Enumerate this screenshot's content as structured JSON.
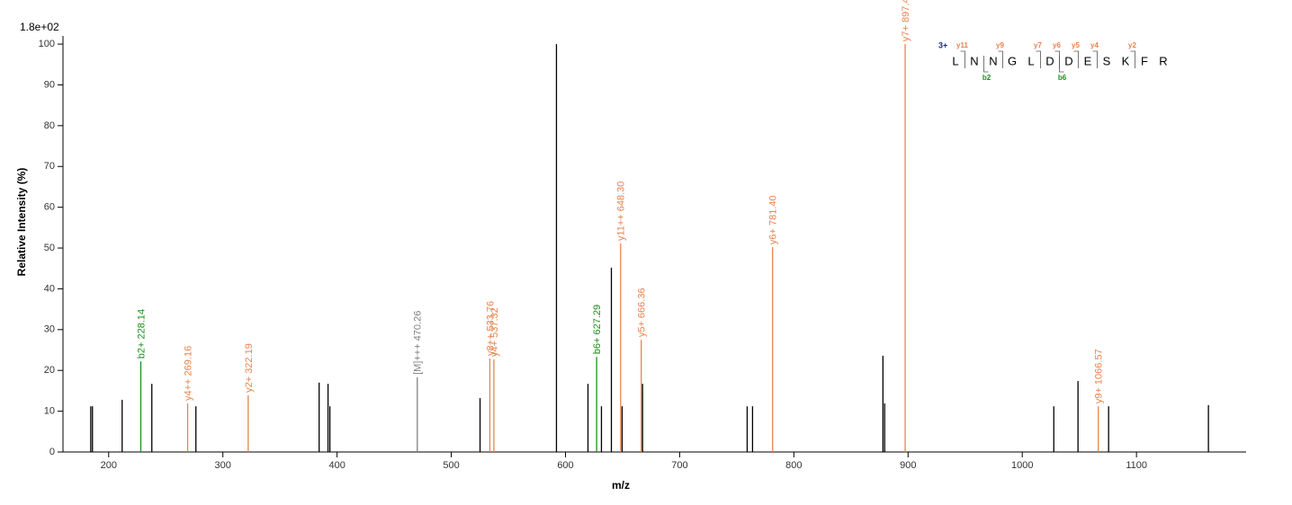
{
  "chart_data": {
    "type": "spectrum",
    "scale_label": "1.8e+02",
    "x_label": "m/z",
    "y_label": "Relative  Intensity (%)",
    "xlim": [
      160,
      1196
    ],
    "ylim": [
      0,
      102
    ],
    "xticks": [
      200,
      300,
      400,
      500,
      600,
      700,
      800,
      900,
      1000,
      1100
    ],
    "yticks": [
      0,
      10,
      20,
      30,
      40,
      50,
      60,
      70,
      80,
      90,
      100
    ],
    "x": [
      184.3,
      185.8,
      211.8,
      228.14,
      237.8,
      269.16,
      276.4,
      322.19,
      384.3,
      392.1,
      393.7,
      470.26,
      525.2,
      533.76,
      537.32,
      592.1,
      619.7,
      627.29,
      631.5,
      640.2,
      648.3,
      649.6,
      666.36,
      667.5,
      759.1,
      763.8,
      781.4,
      878.0,
      879.5,
      897.45,
      1027.6,
      1048.8,
      1066.57,
      1075.6,
      1163.0
    ],
    "values": [
      11.2,
      11.2,
      12.8,
      22.2,
      16.7,
      11.9,
      11.2,
      13.9,
      17,
      16.7,
      11.2,
      18.3,
      13.2,
      22.9,
      22.7,
      100,
      16.7,
      23.3,
      11.2,
      45.2,
      51.1,
      11.2,
      27.5,
      16.7,
      11.2,
      11.2,
      50.2,
      23.6,
      11.9,
      100,
      11.2,
      17.4,
      11.2,
      11.2,
      11.5
    ],
    "colors": [
      "#000000",
      "#000000",
      "#000000",
      "#1d8f1d",
      "#000000",
      "#e8834e",
      "#000000",
      "#e8834e",
      "#000000",
      "#000000",
      "#000000",
      "#7f7f7f",
      "#000000",
      "#e8834e",
      "#e8834e",
      "#000000",
      "#000000",
      "#1d8f1d",
      "#000000",
      "#000000",
      "#e8834e",
      "#000000",
      "#e8834e",
      "#000000",
      "#000000",
      "#000000",
      "#e8834e",
      "#000000",
      "#000000",
      "#e8834e",
      "#000000",
      "#000000",
      "#e8834e",
      "#000000",
      "#000000"
    ],
    "labels": [
      null,
      null,
      null,
      "b2+ 228.14",
      null,
      "y4++ 269.16",
      null,
      "y2+ 322.19",
      null,
      null,
      null,
      "[M]+++ 470.26",
      null,
      "y8++ 533.76",
      "y4+ 537.32",
      null,
      null,
      "b6+ 627.29",
      null,
      null,
      "y11++ 648.30",
      null,
      "y5+ 666.36",
      null,
      null,
      null,
      "y6+ 781.40",
      null,
      null,
      "y7+ 897.45",
      null,
      null,
      "y9+ 1066.57",
      null,
      null
    ],
    "charge": "3+",
    "sequence": [
      "L",
      "N",
      "N",
      "G",
      "L",
      "D",
      "D",
      "E",
      "S",
      "K",
      "F",
      "R"
    ],
    "ions": [
      {
        "label": "y11",
        "after": 1,
        "side": "top",
        "color": "#e8834e"
      },
      {
        "label": "y9",
        "after": 3,
        "side": "top",
        "color": "#e8834e"
      },
      {
        "label": "y7",
        "after": 5,
        "side": "top",
        "color": "#e8834e"
      },
      {
        "label": "y6",
        "after": 6,
        "side": "top",
        "color": "#e8834e"
      },
      {
        "label": "y5",
        "after": 7,
        "side": "top",
        "color": "#e8834e"
      },
      {
        "label": "y4",
        "after": 8,
        "side": "top",
        "color": "#e8834e"
      },
      {
        "label": "y2",
        "after": 10,
        "side": "top",
        "color": "#e8834e"
      },
      {
        "label": "b2",
        "after": 2,
        "side": "bottom",
        "color": "#1d8f1d"
      },
      {
        "label": "b6",
        "after": 6,
        "side": "bottom",
        "color": "#1d8f1d"
      }
    ]
  }
}
